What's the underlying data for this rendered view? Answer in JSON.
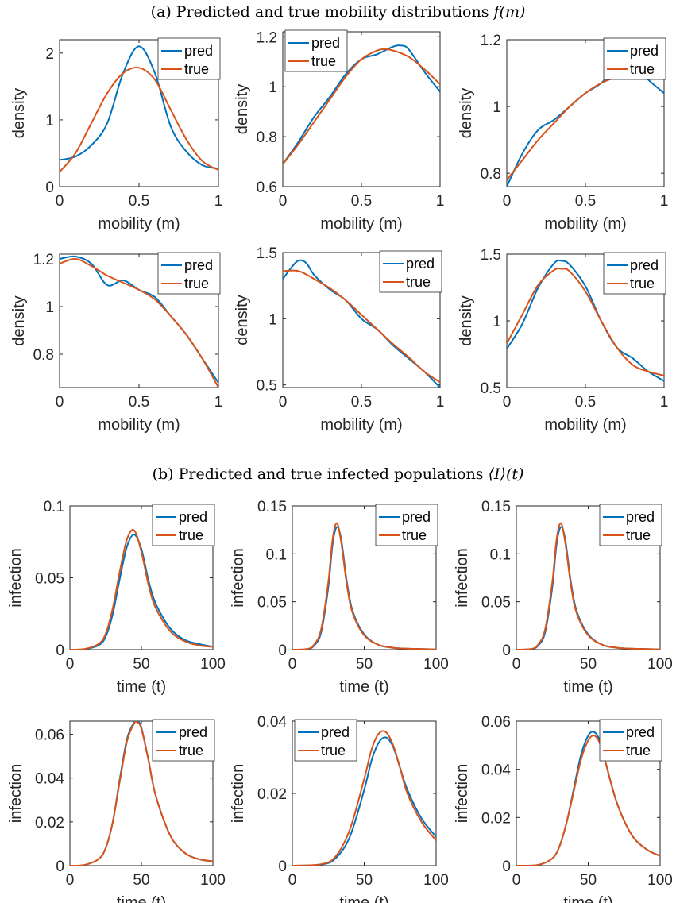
{
  "captions": {
    "a_prefix": "(a) Predicted and true mobility distributions ",
    "a_math": "f(m)",
    "b_prefix": "(b) Predicted and true infected populations ",
    "b_math": "⟨I⟩(t)"
  },
  "colors": {
    "pred": "#0072BD",
    "true": "#D95319"
  },
  "chart_data": [
    {
      "type": "line",
      "panel": "a1",
      "xlabel": "mobility (m)",
      "ylabel": "density",
      "xlim": [
        0,
        1
      ],
      "ylim": [
        0,
        2.2
      ],
      "xticks": [
        "0",
        "0.5",
        "1"
      ],
      "yticks": [
        "0",
        "1",
        "2"
      ],
      "legend": "top-right",
      "series": [
        {
          "name": "pred",
          "x": [
            0,
            0.1,
            0.2,
            0.3,
            0.4,
            0.5,
            0.6,
            0.7,
            0.8,
            0.9,
            1.0
          ],
          "y": [
            0.4,
            0.45,
            0.62,
            0.95,
            1.7,
            2.1,
            1.7,
            0.9,
            0.52,
            0.32,
            0.27
          ]
        },
        {
          "name": "true",
          "x": [
            0,
            0.1,
            0.2,
            0.3,
            0.4,
            0.5,
            0.6,
            0.7,
            0.8,
            0.9,
            1.0
          ],
          "y": [
            0.22,
            0.5,
            0.95,
            1.4,
            1.7,
            1.78,
            1.6,
            1.15,
            0.7,
            0.38,
            0.25
          ]
        }
      ]
    },
    {
      "type": "line",
      "panel": "a2",
      "xlabel": "mobility (m)",
      "ylabel": "density",
      "xlim": [
        0,
        1
      ],
      "ylim": [
        0.6,
        1.22
      ],
      "xticks": [
        "0",
        "0.5",
        "1"
      ],
      "yticks": [
        "0.6",
        "0.8",
        "1",
        "1.2"
      ],
      "legend": "top-left",
      "series": [
        {
          "name": "pred",
          "x": [
            0,
            0.1,
            0.2,
            0.3,
            0.4,
            0.5,
            0.6,
            0.7,
            0.75,
            0.8,
            0.9,
            1.0
          ],
          "y": [
            0.69,
            0.78,
            0.88,
            0.96,
            1.05,
            1.11,
            1.13,
            1.16,
            1.165,
            1.15,
            1.06,
            0.98
          ]
        },
        {
          "name": "true",
          "x": [
            0,
            0.1,
            0.2,
            0.3,
            0.4,
            0.5,
            0.6,
            0.65,
            0.7,
            0.8,
            0.9,
            1.0
          ],
          "y": [
            0.69,
            0.77,
            0.86,
            0.95,
            1.04,
            1.11,
            1.145,
            1.15,
            1.145,
            1.12,
            1.07,
            1.01
          ]
        }
      ]
    },
    {
      "type": "line",
      "panel": "a3",
      "xlabel": "mobility (m)",
      "ylabel": "density",
      "xlim": [
        0,
        1
      ],
      "ylim": [
        0.76,
        1.2
      ],
      "xticks": [
        "0",
        "0.5",
        "1"
      ],
      "yticks": [
        "0.8",
        "1",
        "1.2"
      ],
      "legend": "top-right",
      "series": [
        {
          "name": "pred",
          "x": [
            0,
            0.1,
            0.2,
            0.3,
            0.4,
            0.5,
            0.6,
            0.7,
            0.75,
            0.8,
            0.9,
            1.0
          ],
          "y": [
            0.76,
            0.86,
            0.93,
            0.96,
            1.0,
            1.04,
            1.07,
            1.12,
            1.14,
            1.13,
            1.08,
            1.04
          ]
        },
        {
          "name": "true",
          "x": [
            0,
            0.1,
            0.2,
            0.3,
            0.4,
            0.5,
            0.6,
            0.7,
            0.8,
            0.9,
            1.0
          ],
          "y": [
            0.78,
            0.84,
            0.9,
            0.95,
            1.0,
            1.04,
            1.07,
            1.09,
            1.11,
            1.11,
            1.1
          ]
        }
      ]
    },
    {
      "type": "line",
      "panel": "a4",
      "xlabel": "mobility (m)",
      "ylabel": "density",
      "xlim": [
        0,
        1
      ],
      "ylim": [
        0.66,
        1.22
      ],
      "xticks": [
        "0",
        "0.5",
        "1"
      ],
      "yticks": [
        "0.8",
        "1",
        "1.2"
      ],
      "legend": "top-right",
      "series": [
        {
          "name": "pred",
          "x": [
            0,
            0.1,
            0.2,
            0.3,
            0.4,
            0.5,
            0.6,
            0.7,
            0.8,
            0.9,
            1.0
          ],
          "y": [
            1.2,
            1.21,
            1.18,
            1.09,
            1.11,
            1.07,
            1.04,
            0.96,
            0.88,
            0.78,
            0.68
          ]
        },
        {
          "name": "true",
          "x": [
            0,
            0.1,
            0.2,
            0.3,
            0.4,
            0.5,
            0.6,
            0.7,
            0.8,
            0.9,
            1.0
          ],
          "y": [
            1.18,
            1.2,
            1.17,
            1.13,
            1.1,
            1.07,
            1.03,
            0.96,
            0.88,
            0.78,
            0.66
          ]
        }
      ]
    },
    {
      "type": "line",
      "panel": "a5",
      "xlabel": "mobility (m)",
      "ylabel": "density",
      "xlim": [
        0,
        1
      ],
      "ylim": [
        0.48,
        1.5
      ],
      "xticks": [
        "0",
        "0.5",
        "1"
      ],
      "yticks": [
        "0.5",
        "1",
        "1.5"
      ],
      "legend": "top-right",
      "series": [
        {
          "name": "pred",
          "x": [
            0,
            0.05,
            0.1,
            0.15,
            0.2,
            0.3,
            0.4,
            0.5,
            0.6,
            0.7,
            0.8,
            0.9,
            1.0
          ],
          "y": [
            1.3,
            1.38,
            1.44,
            1.42,
            1.33,
            1.22,
            1.14,
            1.0,
            0.92,
            0.8,
            0.7,
            0.6,
            0.48
          ]
        },
        {
          "name": "true",
          "x": [
            0,
            0.1,
            0.2,
            0.3,
            0.4,
            0.5,
            0.6,
            0.7,
            0.8,
            0.9,
            1.0
          ],
          "y": [
            1.36,
            1.36,
            1.3,
            1.23,
            1.14,
            1.03,
            0.92,
            0.81,
            0.71,
            0.6,
            0.52
          ]
        }
      ]
    },
    {
      "type": "line",
      "panel": "a6",
      "xlabel": "mobility (m)",
      "ylabel": "density",
      "xlim": [
        0,
        1
      ],
      "ylim": [
        0.5,
        1.5
      ],
      "xticks": [
        "0",
        "0.5",
        "1"
      ],
      "yticks": [
        "0.5",
        "1",
        "1.5"
      ],
      "legend": "top-right",
      "series": [
        {
          "name": "pred",
          "x": [
            0,
            0.1,
            0.2,
            0.3,
            0.35,
            0.4,
            0.5,
            0.6,
            0.7,
            0.8,
            0.9,
            1.0
          ],
          "y": [
            0.79,
            0.98,
            1.25,
            1.43,
            1.45,
            1.42,
            1.26,
            1.0,
            0.8,
            0.72,
            0.62,
            0.55
          ]
        },
        {
          "name": "true",
          "x": [
            0,
            0.1,
            0.2,
            0.3,
            0.35,
            0.4,
            0.5,
            0.6,
            0.7,
            0.8,
            0.9,
            1.0
          ],
          "y": [
            0.83,
            1.05,
            1.27,
            1.38,
            1.39,
            1.37,
            1.22,
            1.0,
            0.8,
            0.67,
            0.62,
            0.59
          ]
        }
      ]
    },
    {
      "type": "line",
      "panel": "b1",
      "xlabel": "time (t)",
      "ylabel": "infection",
      "xlim": [
        0,
        100
      ],
      "ylim": [
        0,
        0.1
      ],
      "xticks": [
        "0",
        "50",
        "100"
      ],
      "yticks": [
        "0",
        "0.05",
        "0.1"
      ],
      "legend": "top-right",
      "series": [
        {
          "name": "pred",
          "x": [
            0,
            10,
            20,
            25,
            30,
            35,
            40,
            45,
            50,
            55,
            60,
            70,
            80,
            90,
            100
          ],
          "y": [
            0,
            0.0003,
            0.003,
            0.009,
            0.025,
            0.05,
            0.072,
            0.08,
            0.07,
            0.048,
            0.032,
            0.015,
            0.007,
            0.004,
            0.002
          ]
        },
        {
          "name": "true",
          "x": [
            0,
            10,
            20,
            25,
            30,
            35,
            40,
            45,
            50,
            55,
            60,
            70,
            80,
            90,
            100
          ],
          "y": [
            0,
            0.0004,
            0.004,
            0.011,
            0.029,
            0.055,
            0.077,
            0.083,
            0.068,
            0.045,
            0.029,
            0.013,
            0.006,
            0.003,
            0.002
          ]
        }
      ]
    },
    {
      "type": "line",
      "panel": "b2",
      "xlabel": "time (t)",
      "ylabel": "infection",
      "xlim": [
        0,
        100
      ],
      "ylim": [
        0,
        0.15
      ],
      "xticks": [
        "0",
        "50",
        "100"
      ],
      "yticks": [
        "0",
        "0.05",
        "0.1",
        "0.15"
      ],
      "legend": "top-right",
      "series": [
        {
          "name": "pred",
          "x": [
            0,
            10,
            15,
            20,
            25,
            28,
            31,
            34,
            38,
            42,
            50,
            60,
            70,
            80,
            100
          ],
          "y": [
            0,
            0.0005,
            0.004,
            0.018,
            0.065,
            0.11,
            0.128,
            0.115,
            0.07,
            0.04,
            0.016,
            0.005,
            0.002,
            0.001,
            0.0003
          ]
        },
        {
          "name": "true",
          "x": [
            0,
            10,
            15,
            20,
            25,
            28,
            31,
            34,
            38,
            42,
            50,
            60,
            70,
            80,
            100
          ],
          "y": [
            0,
            0.0006,
            0.005,
            0.021,
            0.07,
            0.115,
            0.132,
            0.112,
            0.067,
            0.038,
            0.015,
            0.005,
            0.002,
            0.001,
            0.0003
          ]
        }
      ]
    },
    {
      "type": "line",
      "panel": "b3",
      "xlabel": "time (t)",
      "ylabel": "infection",
      "xlim": [
        0,
        100
      ],
      "ylim": [
        0,
        0.15
      ],
      "xticks": [
        "0",
        "50",
        "100"
      ],
      "yticks": [
        "0",
        "0.05",
        "0.1",
        "0.15"
      ],
      "legend": "top-right",
      "series": [
        {
          "name": "pred",
          "x": [
            0,
            10,
            15,
            20,
            25,
            28,
            31,
            34,
            38,
            42,
            50,
            60,
            70,
            80,
            100
          ],
          "y": [
            0,
            0.0005,
            0.004,
            0.018,
            0.065,
            0.11,
            0.128,
            0.115,
            0.07,
            0.04,
            0.016,
            0.005,
            0.002,
            0.001,
            0.0003
          ]
        },
        {
          "name": "true",
          "x": [
            0,
            10,
            15,
            20,
            25,
            28,
            31,
            34,
            38,
            42,
            50,
            60,
            70,
            80,
            100
          ],
          "y": [
            0,
            0.0006,
            0.005,
            0.021,
            0.07,
            0.115,
            0.132,
            0.112,
            0.067,
            0.038,
            0.015,
            0.005,
            0.002,
            0.001,
            0.0003
          ]
        }
      ]
    },
    {
      "type": "line",
      "panel": "b4",
      "xlabel": "time (t)",
      "ylabel": "infection",
      "xlim": [
        0,
        100
      ],
      "ylim": [
        0,
        0.066
      ],
      "xticks": [
        "0",
        "50",
        "100"
      ],
      "yticks": [
        "0",
        "0.02",
        "0.04",
        "0.06"
      ],
      "legend": "top-right",
      "series": [
        {
          "name": "pred",
          "x": [
            0,
            10,
            20,
            25,
            30,
            35,
            40,
            45,
            47,
            50,
            55,
            60,
            70,
            80,
            90,
            100
          ],
          "y": [
            0,
            0.0003,
            0.003,
            0.008,
            0.02,
            0.04,
            0.058,
            0.0655,
            0.066,
            0.063,
            0.048,
            0.032,
            0.014,
            0.006,
            0.003,
            0.002
          ]
        },
        {
          "name": "true",
          "x": [
            0,
            10,
            20,
            25,
            30,
            35,
            40,
            45,
            47,
            50,
            55,
            60,
            70,
            80,
            90,
            100
          ],
          "y": [
            0,
            0.0003,
            0.003,
            0.008,
            0.02,
            0.039,
            0.057,
            0.065,
            0.0655,
            0.0625,
            0.048,
            0.032,
            0.014,
            0.006,
            0.003,
            0.002
          ]
        }
      ]
    },
    {
      "type": "line",
      "panel": "b5",
      "xlabel": "time (t)",
      "ylabel": "infection",
      "xlim": [
        0,
        100
      ],
      "ylim": [
        0,
        0.04
      ],
      "xticks": [
        "0",
        "50",
        "100"
      ],
      "yticks": [
        "0",
        "0.02",
        "0.04"
      ],
      "legend": "top-left",
      "series": [
        {
          "name": "pred",
          "x": [
            0,
            20,
            30,
            40,
            50,
            55,
            60,
            65,
            70,
            75,
            80,
            90,
            100
          ],
          "y": [
            0,
            0.0003,
            0.002,
            0.008,
            0.021,
            0.029,
            0.034,
            0.0355,
            0.033,
            0.027,
            0.021,
            0.013,
            0.008
          ]
        },
        {
          "name": "true",
          "x": [
            0,
            20,
            30,
            40,
            50,
            55,
            60,
            65,
            70,
            75,
            80,
            90,
            100
          ],
          "y": [
            0,
            0.0004,
            0.0025,
            0.01,
            0.024,
            0.032,
            0.0365,
            0.037,
            0.0335,
            0.027,
            0.02,
            0.012,
            0.007
          ]
        }
      ]
    },
    {
      "type": "line",
      "panel": "b6",
      "xlabel": "time (t)",
      "ylabel": "infection",
      "xlim": [
        0,
        100
      ],
      "ylim": [
        0,
        0.06
      ],
      "xticks": [
        "0",
        "50",
        "100"
      ],
      "yticks": [
        "0",
        "0.02",
        "0.04",
        "0.06"
      ],
      "legend": "top-right",
      "series": [
        {
          "name": "pred",
          "x": [
            0,
            15,
            25,
            30,
            35,
            40,
            45,
            50,
            54,
            58,
            62,
            70,
            80,
            90,
            100
          ],
          "y": [
            0,
            0.0003,
            0.003,
            0.008,
            0.018,
            0.032,
            0.046,
            0.054,
            0.0555,
            0.052,
            0.043,
            0.026,
            0.013,
            0.007,
            0.004
          ]
        },
        {
          "name": "true",
          "x": [
            0,
            15,
            25,
            30,
            35,
            40,
            45,
            50,
            54,
            58,
            62,
            70,
            80,
            90,
            100
          ],
          "y": [
            0,
            0.0003,
            0.003,
            0.008,
            0.018,
            0.031,
            0.044,
            0.052,
            0.054,
            0.051,
            0.043,
            0.026,
            0.013,
            0.007,
            0.004
          ]
        }
      ]
    }
  ]
}
